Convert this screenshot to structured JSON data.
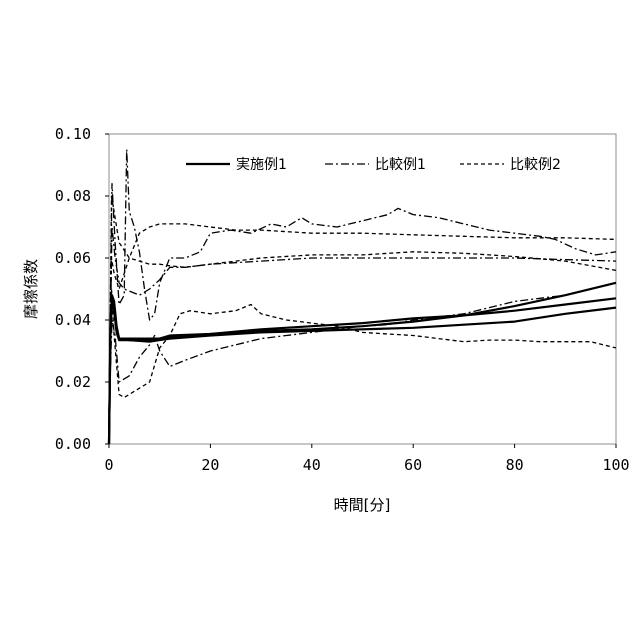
{
  "chart_data": {
    "type": "line",
    "title": "",
    "xlabel": "時間[分]",
    "ylabel": "摩擦係数",
    "xlim": [
      0,
      100
    ],
    "ylim": [
      0,
      0.1
    ],
    "x_ticks": [
      "0",
      "20",
      "40",
      "60",
      "80",
      "100"
    ],
    "y_ticks": [
      "0.00",
      "0.02",
      "0.04",
      "0.06",
      "0.08",
      "0.10"
    ],
    "grid": false,
    "legend_position": "top",
    "legend": [
      {
        "label": "実施例1",
        "style": "solid"
      },
      {
        "label": "比較例1",
        "style": "dashdot"
      },
      {
        "label": "比較例2",
        "style": "dashed"
      }
    ],
    "series": [
      {
        "legend_index": 0,
        "style": "solid",
        "points": [
          [
            0,
            0.0
          ],
          [
            0.3,
            0.035
          ],
          [
            0.6,
            0.048
          ],
          [
            1.0,
            0.046
          ],
          [
            1.5,
            0.038
          ],
          [
            2,
            0.034
          ],
          [
            4,
            0.034
          ],
          [
            8,
            0.034
          ],
          [
            10,
            0.034
          ],
          [
            12,
            0.035
          ],
          [
            20,
            0.0355
          ],
          [
            30,
            0.0365
          ],
          [
            40,
            0.037
          ],
          [
            50,
            0.038
          ],
          [
            60,
            0.0395
          ],
          [
            70,
            0.0415
          ],
          [
            80,
            0.0445
          ],
          [
            90,
            0.048
          ],
          [
            100,
            0.052
          ]
        ]
      },
      {
        "legend_index": 0,
        "style": "solid",
        "points": [
          [
            0,
            0.0
          ],
          [
            0.3,
            0.04
          ],
          [
            0.6,
            0.047
          ],
          [
            1.0,
            0.044
          ],
          [
            1.5,
            0.037
          ],
          [
            2,
            0.034
          ],
          [
            4,
            0.0335
          ],
          [
            8,
            0.0335
          ],
          [
            10,
            0.034
          ],
          [
            12,
            0.0345
          ],
          [
            20,
            0.0355
          ],
          [
            30,
            0.037
          ],
          [
            40,
            0.038
          ],
          [
            50,
            0.039
          ],
          [
            60,
            0.0405
          ],
          [
            70,
            0.0415
          ],
          [
            80,
            0.043
          ],
          [
            90,
            0.045
          ],
          [
            100,
            0.047
          ]
        ]
      },
      {
        "legend_index": 0,
        "style": "solid",
        "points": [
          [
            0,
            0.0
          ],
          [
            0.3,
            0.038
          ],
          [
            0.6,
            0.046
          ],
          [
            1.0,
            0.043
          ],
          [
            1.5,
            0.036
          ],
          [
            2,
            0.0335
          ],
          [
            4,
            0.0335
          ],
          [
            8,
            0.033
          ],
          [
            10,
            0.0335
          ],
          [
            12,
            0.034
          ],
          [
            20,
            0.035
          ],
          [
            30,
            0.036
          ],
          [
            40,
            0.0365
          ],
          [
            50,
            0.037
          ],
          [
            60,
            0.0375
          ],
          [
            70,
            0.0385
          ],
          [
            80,
            0.0395
          ],
          [
            90,
            0.042
          ],
          [
            100,
            0.044
          ]
        ]
      },
      {
        "legend_index": 1,
        "style": "dashdot",
        "points": [
          [
            0,
            0.01
          ],
          [
            0.6,
            0.084
          ],
          [
            1.2,
            0.065
          ],
          [
            2,
            0.045
          ],
          [
            3,
            0.048
          ],
          [
            3.5,
            0.095
          ],
          [
            4,
            0.075
          ],
          [
            5,
            0.07
          ],
          [
            6,
            0.062
          ],
          [
            7,
            0.05
          ],
          [
            8,
            0.04
          ],
          [
            9,
            0.042
          ],
          [
            10,
            0.052
          ],
          [
            12,
            0.06
          ],
          [
            15,
            0.06
          ],
          [
            18,
            0.062
          ],
          [
            20,
            0.068
          ],
          [
            24,
            0.069
          ],
          [
            28,
            0.068
          ],
          [
            32,
            0.071
          ],
          [
            35,
            0.07
          ],
          [
            38,
            0.073
          ],
          [
            40,
            0.071
          ],
          [
            45,
            0.07
          ],
          [
            50,
            0.072
          ],
          [
            55,
            0.074
          ],
          [
            57,
            0.076
          ],
          [
            60,
            0.074
          ],
          [
            65,
            0.073
          ],
          [
            70,
            0.071
          ],
          [
            75,
            0.069
          ],
          [
            80,
            0.068
          ],
          [
            85,
            0.067
          ],
          [
            88,
            0.066
          ],
          [
            92,
            0.063
          ],
          [
            96,
            0.061
          ],
          [
            100,
            0.062
          ]
        ]
      },
      {
        "legend_index": 1,
        "style": "dashdot",
        "points": [
          [
            0,
            0.01
          ],
          [
            0.6,
            0.04
          ],
          [
            1.2,
            0.035
          ],
          [
            2,
            0.02
          ],
          [
            4,
            0.022
          ],
          [
            6,
            0.028
          ],
          [
            8,
            0.032
          ],
          [
            9,
            0.035
          ],
          [
            10,
            0.03
          ],
          [
            12,
            0.025
          ],
          [
            15,
            0.027
          ],
          [
            20,
            0.03
          ],
          [
            25,
            0.032
          ],
          [
            30,
            0.034
          ],
          [
            35,
            0.035
          ],
          [
            40,
            0.036
          ],
          [
            45,
            0.037
          ],
          [
            50,
            0.038
          ],
          [
            55,
            0.0385
          ],
          [
            60,
            0.04
          ],
          [
            65,
            0.041
          ],
          [
            70,
            0.042
          ],
          [
            75,
            0.044
          ],
          [
            80,
            0.046
          ],
          [
            85,
            0.047
          ],
          [
            90,
            0.048
          ],
          [
            95,
            0.05
          ],
          [
            100,
            0.052
          ]
        ]
      },
      {
        "legend_index": 1,
        "style": "dashdot",
        "points": [
          [
            0,
            0.01
          ],
          [
            0.6,
            0.07
          ],
          [
            1.2,
            0.06
          ],
          [
            2,
            0.052
          ],
          [
            3,
            0.05
          ],
          [
            6,
            0.048
          ],
          [
            8,
            0.05
          ],
          [
            10,
            0.053
          ],
          [
            12,
            0.057
          ],
          [
            15,
            0.057
          ],
          [
            20,
            0.058
          ],
          [
            30,
            0.059
          ],
          [
            40,
            0.06
          ],
          [
            50,
            0.06
          ],
          [
            60,
            0.06
          ],
          [
            70,
            0.06
          ],
          [
            80,
            0.06
          ],
          [
            90,
            0.0595
          ],
          [
            100,
            0.059
          ]
        ]
      },
      {
        "legend_index": 2,
        "style": "dashed",
        "points": [
          [
            0,
            0.005
          ],
          [
            0.5,
            0.08
          ],
          [
            1.0,
            0.075
          ],
          [
            2,
            0.065
          ],
          [
            4,
            0.06
          ],
          [
            6,
            0.059
          ],
          [
            8,
            0.058
          ],
          [
            10,
            0.058
          ],
          [
            12,
            0.0575
          ],
          [
            15,
            0.057
          ],
          [
            20,
            0.058
          ],
          [
            30,
            0.06
          ],
          [
            40,
            0.061
          ],
          [
            50,
            0.061
          ],
          [
            60,
            0.062
          ],
          [
            70,
            0.0615
          ],
          [
            80,
            0.0605
          ],
          [
            90,
            0.059
          ],
          [
            100,
            0.056
          ]
        ]
      },
      {
        "legend_index": 2,
        "style": "dashed",
        "points": [
          [
            0,
            0.005
          ],
          [
            0.5,
            0.06
          ],
          [
            1.0,
            0.055
          ],
          [
            2,
            0.05
          ],
          [
            4,
            0.06
          ],
          [
            6,
            0.068
          ],
          [
            8,
            0.07
          ],
          [
            10,
            0.071
          ],
          [
            15,
            0.071
          ],
          [
            20,
            0.07
          ],
          [
            25,
            0.069
          ],
          [
            30,
            0.069
          ],
          [
            40,
            0.068
          ],
          [
            50,
            0.068
          ],
          [
            60,
            0.0675
          ],
          [
            70,
            0.067
          ],
          [
            80,
            0.0665
          ],
          [
            90,
            0.0665
          ],
          [
            100,
            0.066
          ]
        ]
      },
      {
        "legend_index": 2,
        "style": "dashed",
        "points": [
          [
            0,
            0.005
          ],
          [
            0.5,
            0.05
          ],
          [
            1.0,
            0.035
          ],
          [
            2,
            0.016
          ],
          [
            3,
            0.015
          ],
          [
            4,
            0.016
          ],
          [
            6,
            0.018
          ],
          [
            8,
            0.02
          ],
          [
            10,
            0.031
          ],
          [
            12,
            0.035
          ],
          [
            14,
            0.042
          ],
          [
            16,
            0.043
          ],
          [
            20,
            0.042
          ],
          [
            25,
            0.043
          ],
          [
            28,
            0.045
          ],
          [
            30,
            0.042
          ],
          [
            35,
            0.04
          ],
          [
            40,
            0.039
          ],
          [
            45,
            0.038
          ],
          [
            50,
            0.036
          ],
          [
            55,
            0.0355
          ],
          [
            60,
            0.035
          ],
          [
            65,
            0.034
          ],
          [
            70,
            0.033
          ],
          [
            75,
            0.0335
          ],
          [
            80,
            0.0335
          ],
          [
            85,
            0.033
          ],
          [
            90,
            0.033
          ],
          [
            95,
            0.033
          ],
          [
            100,
            0.031
          ]
        ]
      }
    ]
  }
}
